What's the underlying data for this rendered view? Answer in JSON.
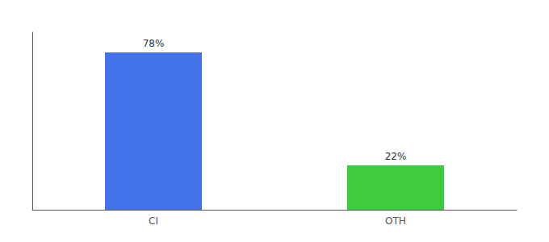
{
  "chart_data": {
    "type": "bar",
    "categories": [
      "CI",
      "OTH"
    ],
    "values": [
      78,
      22
    ],
    "value_labels": [
      "78%",
      "22%"
    ],
    "colors": [
      "#4472e8",
      "#3dcc3d"
    ],
    "ylim": [
      0,
      88
    ],
    "data_labels": true,
    "tick_labels": "x",
    "grid": false
  }
}
